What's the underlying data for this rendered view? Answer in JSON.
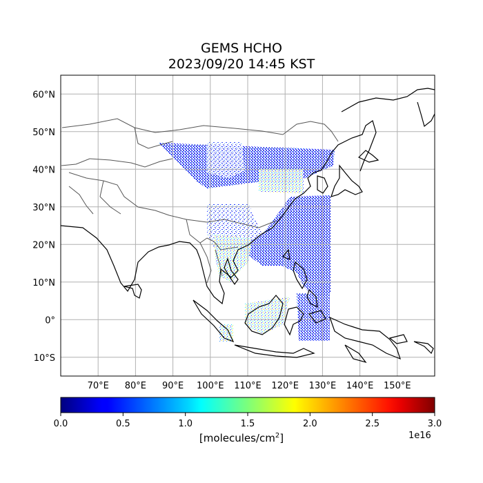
{
  "title": {
    "line1": "GEMS HCHO",
    "line2": "2023/09/20 14:45 KST"
  },
  "map": {
    "lon_range": [
      60,
      160
    ],
    "lat_range": [
      -15,
      65
    ],
    "lon_ticks": [
      70,
      80,
      90,
      100,
      110,
      120,
      130,
      140,
      150
    ],
    "lon_tick_labels": [
      "70°E",
      "80°E",
      "90°E",
      "100°E",
      "110°E",
      "120°E",
      "130°E",
      "140°E",
      "150°E"
    ],
    "lat_ticks": [
      60,
      50,
      40,
      30,
      20,
      10,
      0,
      -10
    ],
    "lat_tick_labels": [
      "60°N",
      "50°N",
      "40°N",
      "30°N",
      "20°N",
      "10°N",
      "0°",
      "10°S"
    ],
    "grid": true
  },
  "colorbar": {
    "ticks": [
      "0.0",
      "0.5",
      "1.0",
      "1.5",
      "2.0",
      "2.5",
      "3.0"
    ],
    "range": [
      0,
      3.0
    ],
    "colormap": "jet",
    "units_prefix": "[molecules/cm",
    "units_exp": "2",
    "units_suffix": "]",
    "multiplier": "1e16"
  }
}
